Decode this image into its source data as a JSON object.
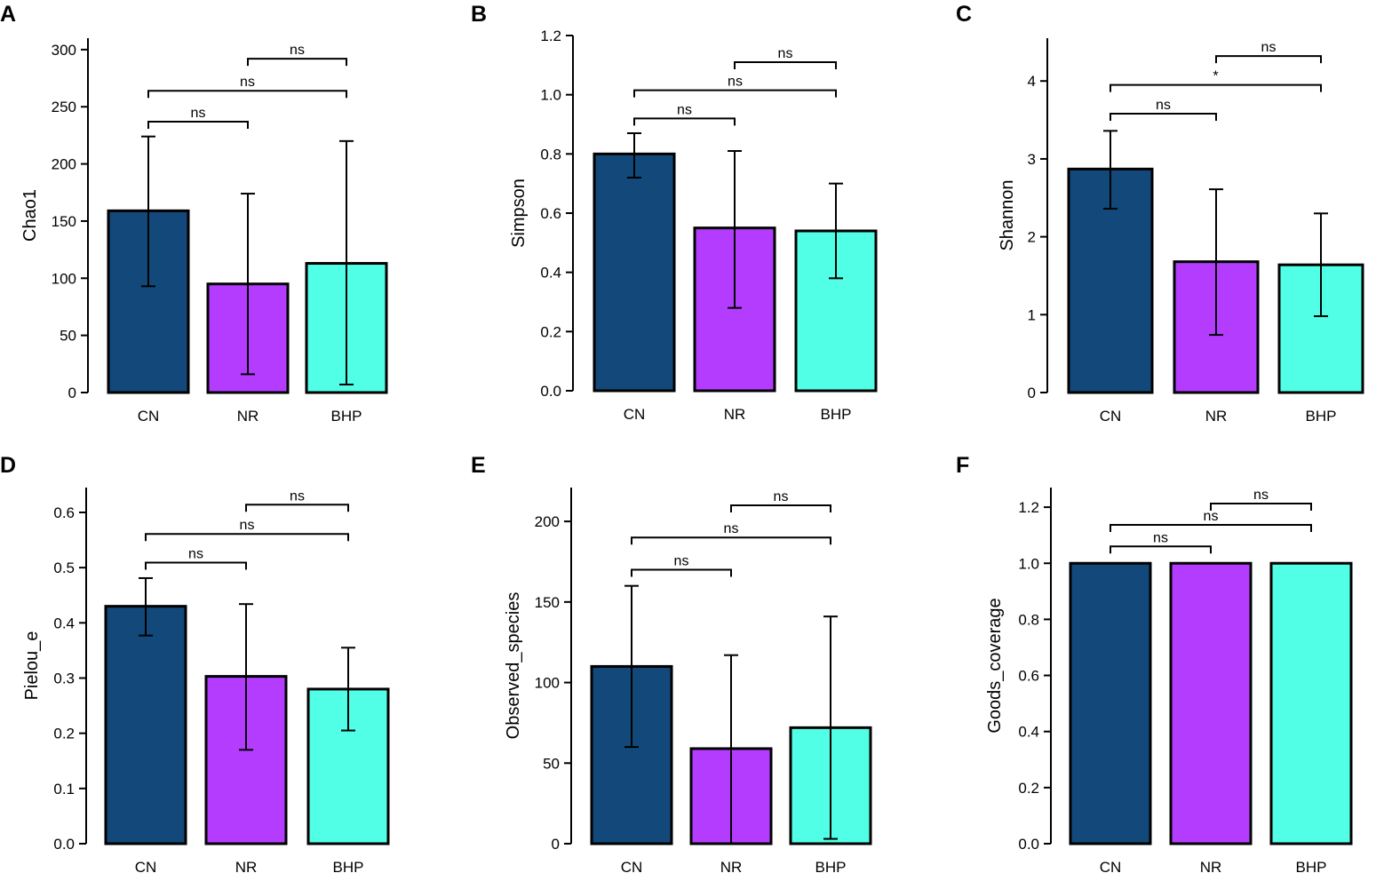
{
  "chart_data": [
    {
      "panel": "A",
      "type": "bar",
      "ylabel": "Chao1",
      "categories": [
        "CN",
        "NR",
        "BHP"
      ],
      "values": [
        159,
        95,
        113
      ],
      "errors_low": [
        93,
        16,
        7
      ],
      "errors_high": [
        224,
        174,
        220
      ],
      "colors": [
        "#12497a",
        "#b43cff",
        "#51ffe6"
      ],
      "ylim": [
        0,
        310
      ],
      "yticks": [
        0,
        50,
        100,
        150,
        200,
        250,
        300
      ],
      "ytick_labels": [
        "0",
        "50",
        "100",
        "150",
        "200",
        "250",
        "300"
      ],
      "comparisons": [
        {
          "from": 0,
          "to": 1,
          "label": "ns",
          "y": 237
        },
        {
          "from": 0,
          "to": 2,
          "label": "ns",
          "y": 264
        },
        {
          "from": 1,
          "to": 2,
          "label": "ns",
          "y": 292
        }
      ]
    },
    {
      "panel": "B",
      "type": "bar",
      "ylabel": "Simpson",
      "categories": [
        "CN",
        "NR",
        "BHP"
      ],
      "values": [
        0.8,
        0.55,
        0.54
      ],
      "errors_low": [
        0.72,
        0.28,
        0.38
      ],
      "errors_high": [
        0.87,
        0.81,
        0.7
      ],
      "colors": [
        "#12497a",
        "#b43cff",
        "#51ffe6"
      ],
      "ylim": [
        0,
        1.2
      ],
      "yticks": [
        0,
        0.2,
        0.4,
        0.6,
        0.8,
        1.0,
        1.2
      ],
      "ytick_labels": [
        "0.0",
        "0.2",
        "0.4",
        "0.6",
        "0.8",
        "1.0",
        "1.2"
      ],
      "comparisons": [
        {
          "from": 0,
          "to": 1,
          "label": "ns",
          "y": 0.92
        },
        {
          "from": 0,
          "to": 2,
          "label": "ns",
          "y": 1.015
        },
        {
          "from": 1,
          "to": 2,
          "label": "ns",
          "y": 1.11
        }
      ]
    },
    {
      "panel": "C",
      "type": "bar",
      "ylabel": "Shannon",
      "categories": [
        "CN",
        "NR",
        "BHP"
      ],
      "values": [
        2.87,
        1.68,
        1.64
      ],
      "errors_low": [
        2.36,
        0.74,
        0.98
      ],
      "errors_high": [
        3.36,
        2.61,
        2.3
      ],
      "colors": [
        "#12497a",
        "#b43cff",
        "#51ffe6"
      ],
      "ylim": [
        0,
        4.55
      ],
      "yticks": [
        0,
        1,
        2,
        3,
        4
      ],
      "ytick_labels": [
        "0",
        "1",
        "2",
        "3",
        "4"
      ],
      "comparisons": [
        {
          "from": 0,
          "to": 1,
          "label": "ns",
          "y": 3.58
        },
        {
          "from": 0,
          "to": 2,
          "label": "*",
          "y": 3.95
        },
        {
          "from": 1,
          "to": 2,
          "label": "ns",
          "y": 4.32
        }
      ]
    },
    {
      "panel": "D",
      "type": "bar",
      "ylabel": "Pielou_e",
      "categories": [
        "CN",
        "NR",
        "BHP"
      ],
      "values": [
        0.43,
        0.303,
        0.28
      ],
      "errors_low": [
        0.377,
        0.17,
        0.205
      ],
      "errors_high": [
        0.481,
        0.434,
        0.355
      ],
      "colors": [
        "#12497a",
        "#b43cff",
        "#51ffe6"
      ],
      "ylim": [
        0,
        0.645
      ],
      "yticks": [
        0,
        0.1,
        0.2,
        0.3,
        0.4,
        0.5,
        0.6
      ],
      "ytick_labels": [
        "0.0",
        "0.1",
        "0.2",
        "0.3",
        "0.4",
        "0.5",
        "0.6"
      ],
      "comparisons": [
        {
          "from": 0,
          "to": 1,
          "label": "ns",
          "y": 0.509
        },
        {
          "from": 0,
          "to": 2,
          "label": "ns",
          "y": 0.561
        },
        {
          "from": 1,
          "to": 2,
          "label": "ns",
          "y": 0.614
        }
      ]
    },
    {
      "panel": "E",
      "type": "bar",
      "ylabel": "Observed_species",
      "categories": [
        "CN",
        "NR",
        "BHP"
      ],
      "values": [
        110,
        59,
        72
      ],
      "errors_low": [
        60,
        0,
        3
      ],
      "errors_high": [
        160,
        117,
        141
      ],
      "colors": [
        "#12497a",
        "#b43cff",
        "#51ffe6"
      ],
      "ylim": [
        0,
        221
      ],
      "yticks": [
        0,
        50,
        100,
        150,
        200
      ],
      "ytick_labels": [
        "0",
        "50",
        "100",
        "150",
        "200"
      ],
      "comparisons": [
        {
          "from": 0,
          "to": 1,
          "label": "ns",
          "y": 170
        },
        {
          "from": 0,
          "to": 2,
          "label": "ns",
          "y": 190
        },
        {
          "from": 1,
          "to": 2,
          "label": "ns",
          "y": 210
        }
      ]
    },
    {
      "panel": "F",
      "type": "bar",
      "ylabel": "Goods_coverage",
      "categories": [
        "CN",
        "NR",
        "BHP"
      ],
      "values": [
        1.0,
        1.0,
        1.0
      ],
      "errors_low": [
        1.0,
        1.0,
        1.0
      ],
      "errors_high": [
        1.0,
        1.0,
        1.0
      ],
      "colors": [
        "#12497a",
        "#b43cff",
        "#51ffe6"
      ],
      "ylim": [
        0,
        1.27
      ],
      "yticks": [
        0,
        0.2,
        0.4,
        0.6,
        0.8,
        1.0,
        1.2
      ],
      "ytick_labels": [
        "0.0",
        "0.2",
        "0.4",
        "0.6",
        "0.8",
        "1.0",
        "1.2"
      ],
      "comparisons": [
        {
          "from": 0,
          "to": 1,
          "label": "ns",
          "y": 1.06
        },
        {
          "from": 0,
          "to": 2,
          "label": "ns",
          "y": 1.137
        },
        {
          "from": 1,
          "to": 2,
          "label": "ns",
          "y": 1.213
        }
      ]
    }
  ]
}
